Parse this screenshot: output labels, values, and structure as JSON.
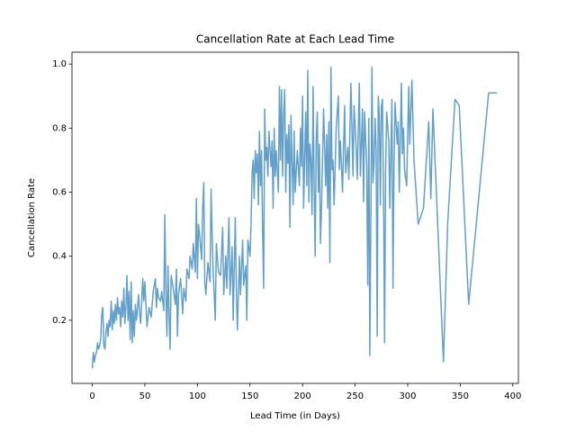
{
  "chart_data": {
    "type": "line",
    "title": "Cancellation Rate at Each Lead Time",
    "x_label": "Lead Time (in Days)",
    "y_label": "Cancellation Rate",
    "x": [
      0,
      1,
      2,
      3,
      4,
      5,
      6,
      7,
      8,
      9,
      10,
      11,
      12,
      13,
      14,
      15,
      16,
      17,
      18,
      19,
      20,
      21,
      22,
      23,
      24,
      25,
      26,
      27,
      28,
      29,
      30,
      31,
      32,
      33,
      34,
      35,
      36,
      37,
      38,
      39,
      40,
      41,
      42,
      44,
      45,
      46,
      48,
      49,
      50,
      52,
      54,
      56,
      58,
      60,
      61,
      62,
      63,
      65,
      66,
      68,
      69,
      70,
      71,
      72,
      73,
      74,
      75,
      77,
      79,
      80,
      81,
      82,
      84,
      86,
      87,
      89,
      90,
      92,
      93,
      95,
      96,
      98,
      99,
      100,
      101,
      102,
      104,
      105,
      106,
      107,
      108,
      110,
      112,
      113,
      114,
      115,
      117,
      118,
      120,
      122,
      124,
      125,
      127,
      128,
      130,
      131,
      133,
      134,
      136,
      137,
      138,
      140,
      141,
      143,
      144,
      146,
      147,
      148,
      150,
      151,
      152,
      153,
      154,
      155,
      156,
      157,
      158,
      159,
      160,
      161,
      162,
      163,
      164,
      165,
      166,
      167,
      168,
      170,
      171,
      172,
      173,
      174,
      175,
      177,
      178,
      179,
      180,
      181,
      182,
      183,
      184,
      185,
      186,
      187,
      188,
      189,
      191,
      192,
      193,
      195,
      197,
      198,
      199,
      200,
      201,
      203,
      204,
      205,
      206,
      207,
      208,
      209,
      210,
      211,
      212,
      213,
      214,
      215,
      216,
      217,
      218,
      220,
      222,
      223,
      224,
      225,
      226,
      227,
      228,
      229,
      230,
      232,
      234,
      235,
      236,
      238,
      240,
      241,
      243,
      244,
      246,
      248,
      249,
      251,
      252,
      254,
      255,
      257,
      258,
      259,
      261,
      262,
      263,
      264,
      266,
      267,
      268,
      269,
      270,
      271,
      272,
      273,
      274,
      275,
      276,
      277,
      278,
      279,
      280,
      282,
      283,
      285,
      286,
      287,
      288,
      290,
      291,
      292,
      294,
      295,
      296,
      297,
      299,
      301,
      302,
      304,
      306,
      310,
      315,
      320,
      322,
      324,
      326,
      334,
      338,
      345,
      349,
      358,
      377,
      385
    ],
    "series": [
      {
        "name": "Cancellation Rate",
        "color": "#1f77b4",
        "values": [
          0.05,
          0.1,
          0.07,
          0.09,
          0.1,
          0.13,
          0.11,
          0.12,
          0.14,
          0.22,
          0.24,
          0.12,
          0.11,
          0.16,
          0.19,
          0.15,
          0.2,
          0.18,
          0.26,
          0.17,
          0.23,
          0.19,
          0.25,
          0.2,
          0.27,
          0.22,
          0.24,
          0.18,
          0.26,
          0.21,
          0.3,
          0.19,
          0.24,
          0.34,
          0.2,
          0.29,
          0.14,
          0.32,
          0.13,
          0.23,
          0.15,
          0.25,
          0.2,
          0.28,
          0.22,
          0.19,
          0.33,
          0.26,
          0.32,
          0.18,
          0.24,
          0.21,
          0.29,
          0.33,
          0.24,
          0.3,
          0.27,
          0.26,
          0.29,
          0.23,
          0.53,
          0.29,
          0.15,
          0.37,
          0.22,
          0.11,
          0.34,
          0.3,
          0.25,
          0.36,
          0.15,
          0.28,
          0.33,
          0.22,
          0.3,
          0.26,
          0.36,
          0.33,
          0.4,
          0.36,
          0.44,
          0.35,
          0.58,
          0.33,
          0.5,
          0.47,
          0.39,
          0.55,
          0.63,
          0.32,
          0.28,
          0.38,
          0.32,
          0.61,
          0.47,
          0.35,
          0.2,
          0.44,
          0.35,
          0.34,
          0.49,
          0.28,
          0.4,
          0.3,
          0.52,
          0.28,
          0.43,
          0.2,
          0.52,
          0.3,
          0.17,
          0.4,
          0.28,
          0.45,
          0.31,
          0.37,
          0.2,
          0.45,
          0.4,
          0.5,
          0.66,
          0.7,
          0.58,
          0.73,
          0.66,
          0.72,
          0.56,
          0.79,
          0.62,
          0.73,
          0.48,
          0.3,
          0.86,
          0.7,
          0.74,
          0.65,
          0.79,
          0.68,
          0.76,
          0.55,
          0.8,
          0.65,
          0.73,
          0.6,
          0.93,
          0.7,
          0.92,
          0.65,
          0.84,
          0.92,
          0.6,
          0.78,
          0.69,
          0.81,
          0.49,
          0.84,
          0.56,
          0.79,
          0.6,
          0.73,
          0.62,
          0.8,
          0.68,
          0.9,
          0.55,
          0.85,
          0.62,
          0.98,
          0.57,
          0.75,
          0.7,
          0.53,
          0.93,
          0.62,
          0.4,
          0.76,
          0.85,
          0.6,
          0.75,
          0.44,
          0.55,
          0.86,
          0.62,
          0.78,
          0.55,
          0.82,
          0.38,
          0.99,
          0.67,
          0.7,
          0.56,
          0.8,
          0.9,
          0.67,
          0.76,
          0.6,
          0.87,
          0.66,
          0.74,
          0.64,
          0.94,
          0.65,
          0.87,
          0.74,
          0.64,
          0.94,
          0.65,
          0.86,
          0.57,
          0.85,
          0.68,
          0.31,
          0.83,
          0.09,
          0.99,
          0.63,
          0.69,
          0.83,
          0.73,
          0.15,
          0.9,
          0.84,
          0.56,
          0.87,
          0.89,
          0.6,
          0.13,
          0.67,
          0.85,
          0.76,
          0.55,
          0.89,
          0.3,
          0.69,
          0.88,
          0.75,
          0.82,
          0.6,
          0.94,
          0.72,
          0.8,
          0.67,
          0.62,
          0.93,
          0.75,
          0.95,
          0.7,
          0.5,
          0.55,
          0.82,
          0.58,
          0.86,
          0.7,
          0.07,
          0.5,
          0.89,
          0.87,
          0.25,
          0.91,
          0.91
        ]
      }
    ],
    "xlim": [
      -19.3,
      405.3
    ],
    "ylim": [
      0.003,
      1.037
    ],
    "xticks": [
      0,
      50,
      100,
      150,
      200,
      250,
      300,
      350,
      400
    ],
    "yticks": [
      0.2,
      0.4,
      0.6,
      0.8,
      {
        "value": 1,
        "label": "1.0"
      }
    ],
    "grid": false
  }
}
